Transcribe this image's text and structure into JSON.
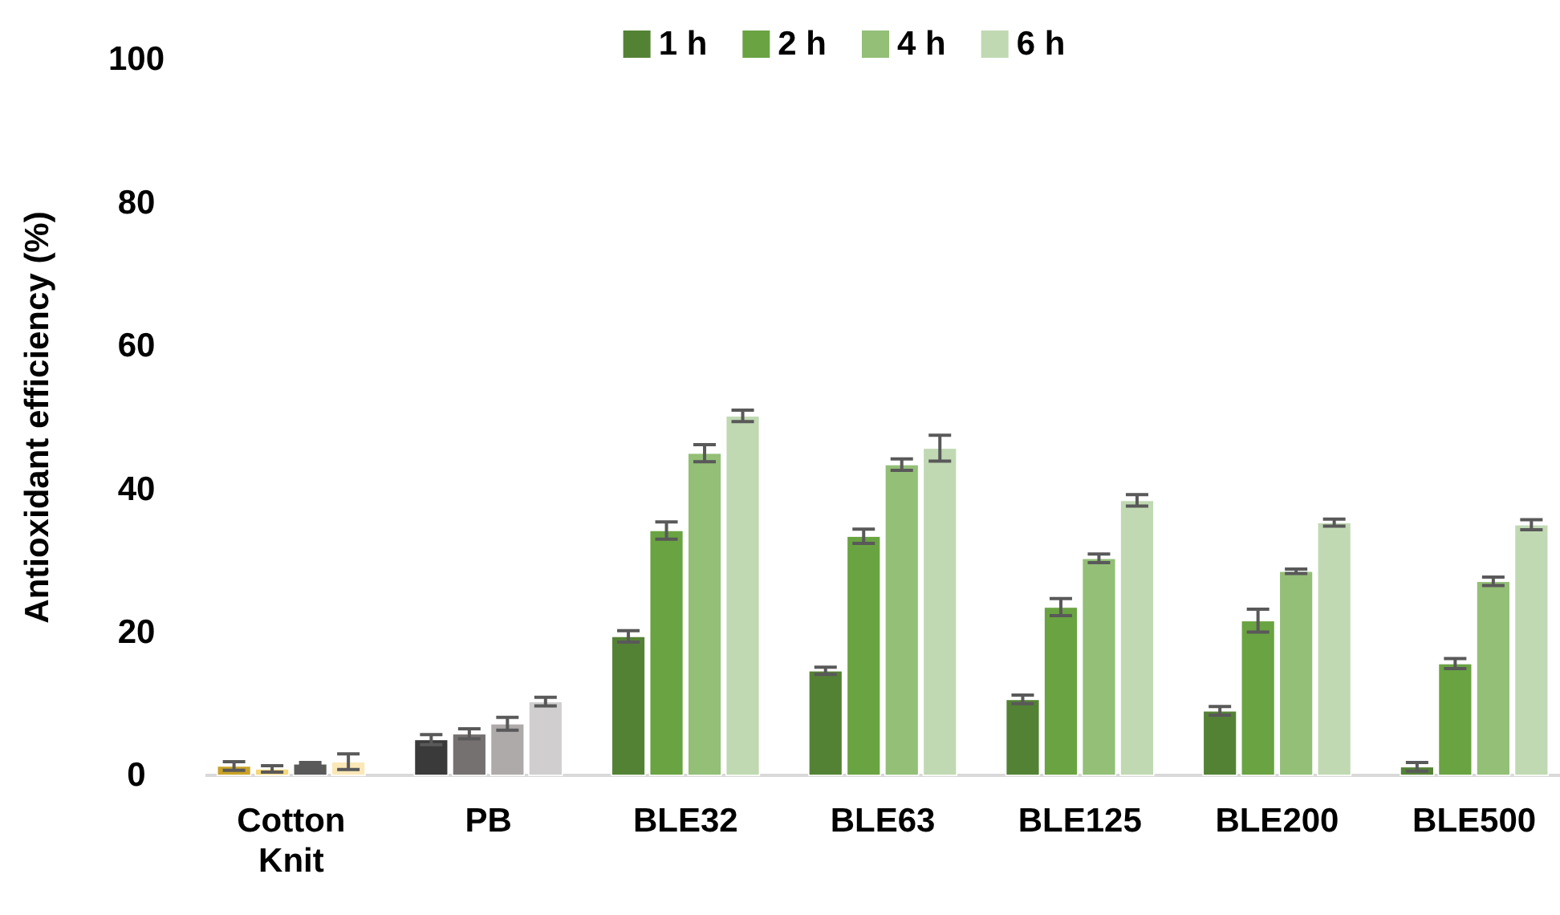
{
  "chart_data": {
    "type": "bar",
    "ylabel": "Antioxidant efficiency (%)",
    "categories": [
      "Cotton Knit",
      "PB",
      "BLE32",
      "BLE63",
      "BLE125",
      "BLE200",
      "BLE500"
    ],
    "series": [
      {
        "name": "1 h",
        "color": "#548235",
        "colors": [
          "#c9a227",
          "#3a3a3a",
          "#548235",
          "#548235",
          "#548235",
          "#548235",
          "#548235"
        ],
        "values": [
          1.3,
          5.0,
          19.4,
          14.6,
          10.6,
          9.0,
          1.2
        ],
        "errors": [
          0.6,
          0.7,
          0.8,
          0.5,
          0.6,
          0.6,
          0.6
        ]
      },
      {
        "name": "2 h",
        "color": "#6aa342",
        "colors": [
          "#f5d77a",
          "#767171",
          "#6aa342",
          "#6aa342",
          "#6aa342",
          "#6aa342",
          "#6aa342"
        ],
        "values": [
          0.9,
          5.8,
          34.2,
          33.4,
          23.5,
          21.6,
          15.6
        ],
        "errors": [
          0.45,
          0.7,
          1.2,
          1.0,
          1.2,
          1.6,
          0.7
        ]
      },
      {
        "name": "4 h",
        "color": "#93bf77",
        "colors": [
          "#595959",
          "#aeaaaa",
          "#93bf77",
          "#93bf77",
          "#93bf77",
          "#93bf77",
          "#93bf77"
        ],
        "values": [
          1.6,
          7.2,
          45.0,
          43.4,
          30.3,
          28.5,
          27.1
        ],
        "errors": [
          0.2,
          0.9,
          1.2,
          0.8,
          0.6,
          0.3,
          0.6
        ]
      },
      {
        "name": "6 h",
        "color": "#c0d9b3",
        "colors": [
          "#fbe8b8",
          "#d0cece",
          "#c0d9b3",
          "#c0d9b3",
          "#c0d9b3",
          "#c0d9b3",
          "#c0d9b3"
        ],
        "values": [
          1.9,
          10.3,
          50.2,
          45.7,
          38.4,
          35.3,
          35.0
        ],
        "errors": [
          1.1,
          0.6,
          0.8,
          1.8,
          0.8,
          0.5,
          0.7
        ]
      }
    ],
    "ylim": [
      0,
      100
    ],
    "yticks": [
      0,
      20,
      40,
      60,
      80,
      100
    ],
    "grid": false,
    "legend": "top"
  }
}
